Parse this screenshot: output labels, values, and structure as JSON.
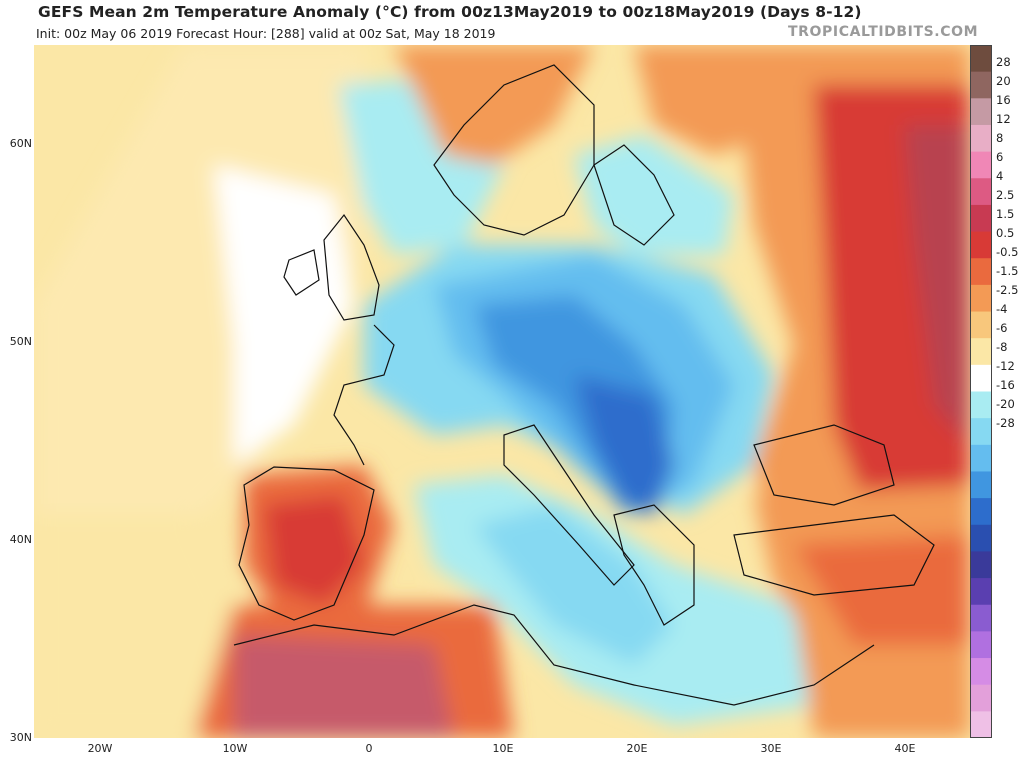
{
  "header": {
    "title": "GEFS Mean 2m Temperature Anomaly (°C) from 00z13May2019 to 00z18May2019 (Days 8-12)",
    "subtitle": "Init: 00z May 06 2019   Forecast Hour: [288]   valid at 00z Sat, May 18 2019",
    "brand": "TROPICALTIDBITS.COM"
  },
  "axes": {
    "lat_labels": [
      "60N",
      "50N",
      "40N",
      "30N"
    ],
    "lon_labels": [
      "20W",
      "10W",
      "0",
      "10E",
      "20E",
      "30E",
      "40E"
    ]
  },
  "colorbar": {
    "labels": [
      "28",
      "20",
      "16",
      "12",
      "8",
      "6",
      "4",
      "2.5",
      "1.5",
      "0.5",
      "-0.5",
      "-1.5",
      "-2.5",
      "-4",
      "-6",
      "-8",
      "-12",
      "-16",
      "-20",
      "-28"
    ],
    "colors": [
      "#6e4c3e",
      "#8f6660",
      "#c59aa4",
      "#e8aec6",
      "#f087b6",
      "#dd5a83",
      "#c83a52",
      "#d83a36",
      "#ea6a3e",
      "#f39a55",
      "#f8c77c",
      "#fbe7a6",
      "#ffffff",
      "#a9ecf2",
      "#86d9f2",
      "#64bdef",
      "#4096e0",
      "#2d6dcc",
      "#2a4fb0",
      "#3a3a9a",
      "#5a3fb0",
      "#8a5cd0",
      "#b070e0",
      "#d58ce5",
      "#e3a0da",
      "#efc0e6"
    ]
  },
  "map": {
    "description_regions": [
      "ocean",
      "land"
    ],
    "colors": {
      "ocean_neutral": "#ffffff",
      "warm_light": "#fbe7a6",
      "warm_mid": "#f39a55",
      "warm_strong": "#d83a36",
      "warm_extreme": "#a94a5e",
      "cool_light": "#a9ecf2",
      "cool_mid": "#64bdef",
      "cool_strong": "#2d6dcc"
    }
  }
}
